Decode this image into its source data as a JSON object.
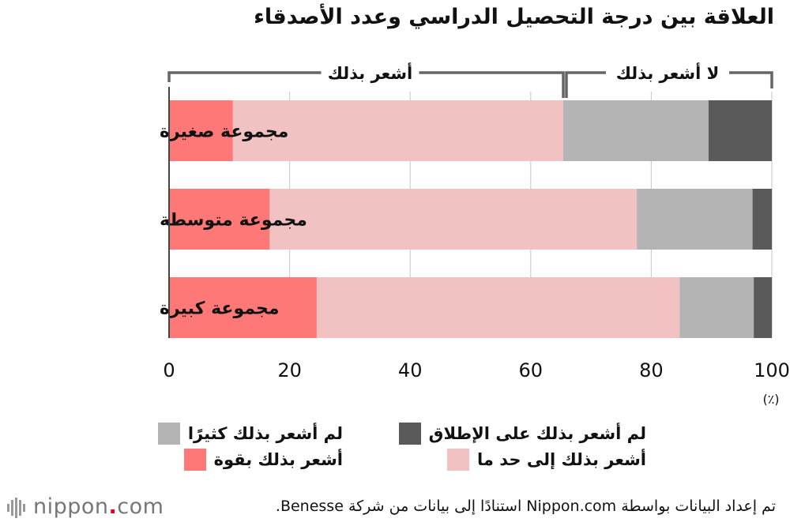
{
  "chart_data": {
    "type": "bar",
    "orientation": "horizontal",
    "stacked": true,
    "title": "العلاقة بين درجة التحصيل الدراسي وعدد الأصدقاء",
    "categories": [
      "مجموعة صغيرة",
      "مجموعة متوسطة",
      "مجموعة كبيرة"
    ],
    "series": [
      {
        "name": "أشعر بذلك بقوة",
        "color": "#ff7878",
        "values": [
          10.6,
          16.7,
          24.5
        ]
      },
      {
        "name": "أشعر بذلك إلى حد ما",
        "color": "#f2c2c2",
        "values": [
          54.8,
          60.9,
          60.2
        ]
      },
      {
        "name": "لم أشعر بذلك  كثيرًا",
        "color": "#b4b4b4",
        "values": [
          24.1,
          19.2,
          12.3
        ]
      },
      {
        "name": "لم أشعر بذلك على الإطلاق",
        "color": "#5a5a5a",
        "values": [
          10.5,
          3.2,
          3.0
        ]
      }
    ],
    "xlim": [
      0,
      100
    ],
    "xticks": [
      0,
      20,
      40,
      60,
      80,
      100
    ],
    "unit_label": "(٪)",
    "grid": true,
    "brackets": {
      "feel": "أشعر بذلك",
      "not_feel": "لا أشعر بذلك"
    },
    "legend_position": "bottom"
  },
  "legend": {
    "order": [
      2,
      3,
      0,
      1
    ]
  },
  "footer": {
    "source": "تم إعداد البيانات بواسطة Nippon.com استنادًا إلى بيانات من شركة Benesse.",
    "logo_main": "nippon",
    "logo_dot": ".",
    "logo_tld": "com"
  }
}
